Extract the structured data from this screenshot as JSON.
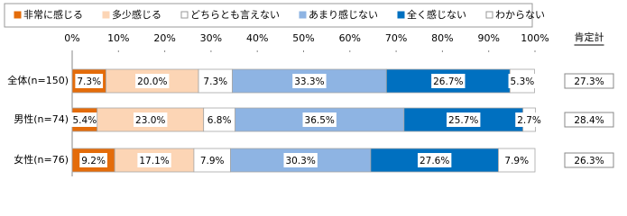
{
  "chart_data": {
    "type": "stacked_barh",
    "categories": [
      "全体(n=150)",
      "男性(n=74)",
      "女性(n=76)"
    ],
    "series": [
      {
        "name": "非常に感じる",
        "color": "#e46c0a",
        "values": [
          7.3,
          5.4,
          9.2
        ],
        "value_labels": [
          "7.3%",
          "5.4%",
          "9.2%"
        ]
      },
      {
        "name": "多少感じる",
        "color": "#fcd5b5",
        "values": [
          20.0,
          23.0,
          17.1
        ],
        "value_labels": [
          "20.0%",
          "23.0%",
          "17.1%"
        ]
      },
      {
        "name": "どちらとも言えない",
        "color": "#ffffff",
        "values": [
          7.3,
          6.8,
          7.9
        ],
        "value_labels": [
          "7.3%",
          "6.8%",
          "7.9%"
        ]
      },
      {
        "name": "あまり感じない",
        "color": "#8eb4e3",
        "values": [
          33.3,
          36.5,
          30.3
        ],
        "value_labels": [
          "33.3%",
          "36.5%",
          "30.3%"
        ]
      },
      {
        "name": "全く感じない",
        "color": "#0070c0",
        "values": [
          26.7,
          25.7,
          27.6
        ],
        "value_labels": [
          "26.7%",
          "25.7%",
          "27.6%"
        ]
      },
      {
        "name": "わからない",
        "color": "#ffffff",
        "values": [
          5.3,
          2.7,
          7.9
        ],
        "value_labels": [
          "5.3%",
          "2.7%",
          "7.9%"
        ]
      }
    ],
    "xlim": [
      0,
      100
    ],
    "xticks": [
      {
        "value": 0,
        "label": "0%"
      },
      {
        "value": 10,
        "label": "10%"
      },
      {
        "value": 20,
        "label": "20%"
      },
      {
        "value": 30,
        "label": "30%"
      },
      {
        "value": 40,
        "label": "40%"
      },
      {
        "value": 50,
        "label": "50%"
      },
      {
        "value": 60,
        "label": "60%"
      },
      {
        "value": 70,
        "label": "70%"
      },
      {
        "value": 80,
        "label": "80%"
      },
      {
        "value": 90,
        "label": "90%"
      },
      {
        "value": 100,
        "label": "100%"
      }
    ],
    "side_column": {
      "title": "肯定計",
      "values": [
        27.3,
        28.4,
        26.3
      ],
      "value_labels": [
        "27.3%",
        "28.4%",
        "26.3%"
      ]
    }
  }
}
